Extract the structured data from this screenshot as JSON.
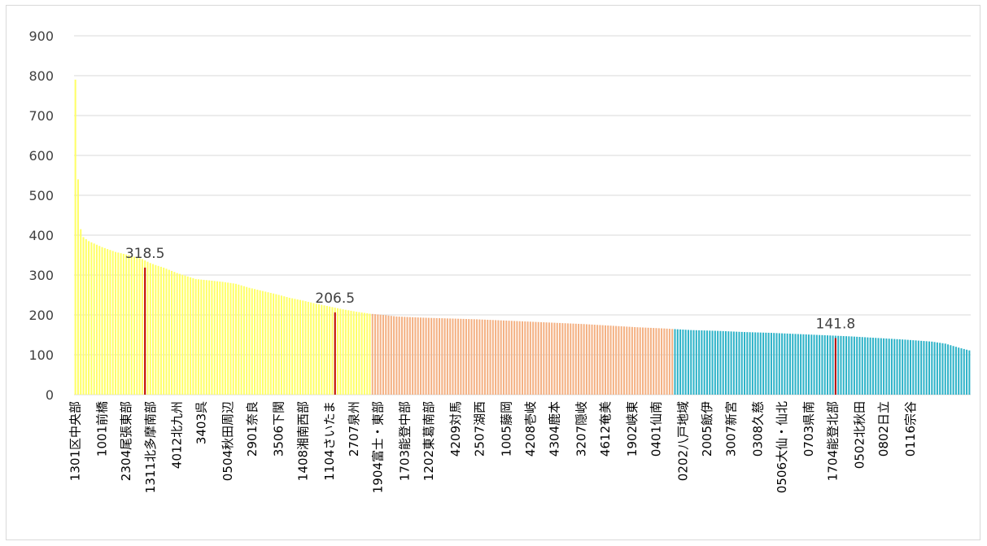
{
  "chart_data": {
    "type": "bar",
    "title": "",
    "xlabel": "",
    "ylabel": "",
    "ylim": [
      0,
      900
    ],
    "yticks": [
      "0",
      "100",
      "200",
      "300",
      "400",
      "500",
      "600",
      "700",
      "800",
      "900"
    ],
    "grid": true,
    "legend": "none",
    "bar_count": 335,
    "group_colors": [
      "#ffff66",
      "#f4b183",
      "#2eb3c8"
    ],
    "groups": [
      {
        "start": 0,
        "end": 110,
        "color": "#ffff66"
      },
      {
        "start": 111,
        "end": 223,
        "color": "#f4b183"
      },
      {
        "start": 224,
        "end": 334,
        "color": "#2eb3c8"
      }
    ],
    "value_anchors": [
      [
        0,
        790
      ],
      [
        1,
        540
      ],
      [
        2,
        415
      ],
      [
        3,
        395
      ],
      [
        5,
        385
      ],
      [
        10,
        370
      ],
      [
        15,
        358
      ],
      [
        20,
        350
      ],
      [
        25,
        340
      ],
      [
        28,
        330
      ],
      [
        30,
        325
      ],
      [
        33,
        318.5
      ],
      [
        38,
        305
      ],
      [
        45,
        290
      ],
      [
        55,
        283
      ],
      [
        60,
        278
      ],
      [
        65,
        268
      ],
      [
        70,
        260
      ],
      [
        75,
        252
      ],
      [
        80,
        243
      ],
      [
        85,
        236
      ],
      [
        90,
        228
      ],
      [
        95,
        221
      ],
      [
        100,
        214
      ],
      [
        105,
        208
      ],
      [
        110,
        203
      ],
      [
        115,
        200
      ],
      [
        120,
        196
      ],
      [
        130,
        193
      ],
      [
        140,
        191
      ],
      [
        150,
        189
      ],
      [
        160,
        186
      ],
      [
        170,
        183
      ],
      [
        180,
        180
      ],
      [
        190,
        177
      ],
      [
        200,
        173
      ],
      [
        210,
        169
      ],
      [
        220,
        166
      ],
      [
        225,
        164
      ],
      [
        230,
        162
      ],
      [
        240,
        160
      ],
      [
        250,
        157
      ],
      [
        260,
        155
      ],
      [
        270,
        152
      ],
      [
        280,
        149
      ],
      [
        290,
        146
      ],
      [
        300,
        142
      ],
      [
        310,
        138
      ],
      [
        320,
        133
      ],
      [
        325,
        128
      ],
      [
        330,
        118
      ],
      [
        334,
        111
      ]
    ],
    "reference_lines": [
      {
        "index": 26,
        "value": 318.5,
        "label": "318.5",
        "color": "#c00000"
      },
      {
        "index": 97,
        "value": 206.5,
        "label": "206.5",
        "color": "#c00000"
      },
      {
        "index": 284,
        "value": 141.8,
        "label": "141.8",
        "color": "#c00000"
      }
    ],
    "tick_labels": [
      {
        "index": 0,
        "label": "1301区中央部"
      },
      {
        "index": 10,
        "label": "1001前橋"
      },
      {
        "index": 19,
        "label": "2304尾張東部"
      },
      {
        "index": 28,
        "label": "1311北多摩南部"
      },
      {
        "index": 38,
        "label": "4012北九州"
      },
      {
        "index": 47,
        "label": "3403呉"
      },
      {
        "index": 57,
        "label": "0504秋田周辺"
      },
      {
        "index": 66,
        "label": "2901奈良"
      },
      {
        "index": 76,
        "label": "3506下関"
      },
      {
        "index": 85,
        "label": "1408湘南西部"
      },
      {
        "index": 95,
        "label": "1104さいたま"
      },
      {
        "index": 104,
        "label": "2707泉州"
      },
      {
        "index": 113,
        "label": "1904富士・東部"
      },
      {
        "index": 123,
        "label": "1703能登中部"
      },
      {
        "index": 132,
        "label": "1202東葛南部"
      },
      {
        "index": 142,
        "label": "4209対馬"
      },
      {
        "index": 151,
        "label": "2507湖西"
      },
      {
        "index": 161,
        "label": "1005藤岡"
      },
      {
        "index": 170,
        "label": "4208壱岐"
      },
      {
        "index": 179,
        "label": "4304鹿本"
      },
      {
        "index": 189,
        "label": "3207隠岐"
      },
      {
        "index": 198,
        "label": "4612奄美"
      },
      {
        "index": 208,
        "label": "1902峡東"
      },
      {
        "index": 217,
        "label": "0401仙南"
      },
      {
        "index": 227,
        "label": "0202八戸地域"
      },
      {
        "index": 236,
        "label": "2005飯伊"
      },
      {
        "index": 245,
        "label": "3007新宮"
      },
      {
        "index": 255,
        "label": "0308久慈"
      },
      {
        "index": 264,
        "label": "0506大仙・仙北"
      },
      {
        "index": 274,
        "label": "0703県南"
      },
      {
        "index": 283,
        "label": "1704能登北部"
      },
      {
        "index": 293,
        "label": "0502北秋田"
      },
      {
        "index": 302,
        "label": "0802日立"
      },
      {
        "index": 312,
        "label": "0116宗谷"
      }
    ]
  }
}
